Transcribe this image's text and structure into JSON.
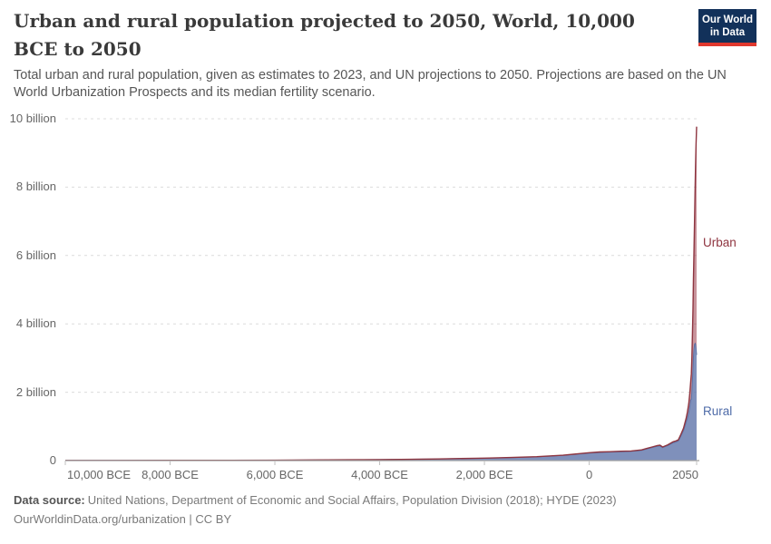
{
  "header": {
    "title": "Urban and rural population projected to 2050, World, 10,000 BCE to 2050",
    "subtitle": "Total urban and rural population, given as estimates to 2023, and UN projections to 2050. Projections are based on the UN World Urbanization Prospects and its median fertility scenario.",
    "logo": {
      "line1": "Our World",
      "line2": "in Data",
      "bg_color": "#12315a",
      "bar_color": "#e0382e"
    }
  },
  "footer": {
    "source_label": "Data source:",
    "source_text": "United Nations, Department of Economic and Social Affairs, Population Division (2018); HYDE (2023)",
    "credit": "OurWorldinData.org/urbanization | CC BY"
  },
  "chart_data": {
    "type": "area",
    "stacked": true,
    "title": "Urban and rural population projected to 2050, World, 10,000 BCE to 2050",
    "xlabel": "",
    "ylabel": "",
    "unit": "billion people",
    "xlim": [
      -10000,
      2050
    ],
    "ylim": [
      0,
      10
    ],
    "grid": "dashed-horizontal",
    "legend_position": "right-end-labels",
    "years": [
      -10000,
      -9000,
      -8000,
      -7000,
      -6000,
      -5000,
      -4000,
      -3000,
      -2000,
      -1500,
      -1000,
      -500,
      0,
      200,
      400,
      600,
      800,
      1000,
      1100,
      1200,
      1300,
      1350,
      1400,
      1500,
      1600,
      1650,
      1700,
      1750,
      1800,
      1850,
      1875,
      1900,
      1920,
      1940,
      1950,
      1960,
      1970,
      1980,
      1990,
      2000,
      2010,
      2023,
      2030,
      2040,
      2050
    ],
    "series": [
      {
        "name": "Rural",
        "fill": "#5b71a8",
        "fill_opacity": 0.78,
        "line": "#5d72a6",
        "label_color": "#4e6ba8",
        "values": [
          0.004,
          0.006,
          0.008,
          0.009,
          0.011,
          0.019,
          0.028,
          0.044,
          0.07,
          0.088,
          0.11,
          0.15,
          0.22,
          0.24,
          0.25,
          0.26,
          0.27,
          0.3,
          0.34,
          0.38,
          0.42,
          0.43,
          0.38,
          0.44,
          0.52,
          0.54,
          0.57,
          0.72,
          0.88,
          1.12,
          1.25,
          1.4,
          1.58,
          1.78,
          1.79,
          2.03,
          2.36,
          2.7,
          3.03,
          3.26,
          3.4,
          3.43,
          3.4,
          3.27,
          3.09
        ]
      },
      {
        "name": "Urban",
        "fill": "#9a3c4a",
        "fill_opacity": 0.55,
        "line": "#8e3540",
        "label_color": "#8f3540",
        "values": [
          0,
          0,
          0,
          0,
          0,
          0.001,
          0.001,
          0.001,
          0.002,
          0.003,
          0.005,
          0.007,
          0.01,
          0.011,
          0.011,
          0.012,
          0.012,
          0.013,
          0.015,
          0.017,
          0.019,
          0.02,
          0.018,
          0.022,
          0.03,
          0.032,
          0.034,
          0.05,
          0.07,
          0.11,
          0.18,
          0.26,
          0.4,
          0.57,
          0.75,
          1.0,
          1.35,
          1.75,
          2.29,
          2.87,
          3.6,
          4.61,
          5.19,
          6.0,
          6.68
        ]
      }
    ],
    "y_ticks": [
      {
        "value": 0,
        "label": "0"
      },
      {
        "value": 2,
        "label": "2 billion"
      },
      {
        "value": 4,
        "label": "4 billion"
      },
      {
        "value": 6,
        "label": "6 billion"
      },
      {
        "value": 8,
        "label": "8 billion"
      },
      {
        "value": 10,
        "label": "10 billion"
      }
    ],
    "x_ticks": [
      {
        "year": -10000,
        "label": "10,000 BCE"
      },
      {
        "year": -8000,
        "label": "8,000 BCE"
      },
      {
        "year": -6000,
        "label": "6,000 BCE"
      },
      {
        "year": -4000,
        "label": "4,000 BCE"
      },
      {
        "year": -2000,
        "label": "2,000 BCE"
      },
      {
        "year": 0,
        "label": "0"
      },
      {
        "year": 2050,
        "label": "2050"
      }
    ]
  }
}
